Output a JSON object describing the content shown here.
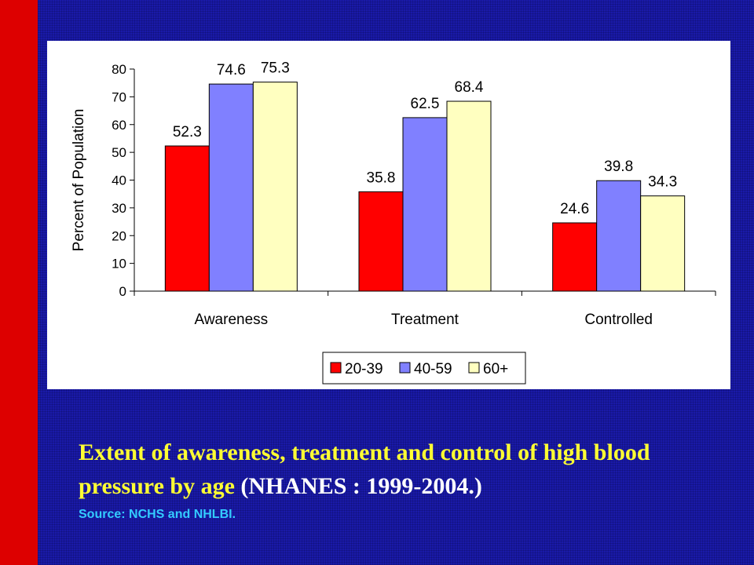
{
  "slide": {
    "colors": {
      "background": "#1a1aa8",
      "left_bar": "#dd0000",
      "caption": "#ffff33",
      "caption_tail": "#ffffff",
      "source": "#33ccff"
    },
    "caption_main": "Extent of awareness, treatment and control of high blood pressure by age",
    "caption_tail": " (NHANES : 1999-2004.)",
    "source": "Source: NCHS and NHLBI."
  },
  "chart_data": {
    "type": "bar",
    "title": "",
    "xlabel": "",
    "ylabel": "Percent of Population",
    "ylim": [
      0,
      80
    ],
    "yticks": [
      0,
      10,
      20,
      30,
      40,
      50,
      60,
      70,
      80
    ],
    "categories": [
      "Awareness",
      "Treatment",
      "Controlled"
    ],
    "series": [
      {
        "name": "20-39",
        "color": "#ff0000",
        "values": [
          52.3,
          35.8,
          24.6
        ]
      },
      {
        "name": "40-59",
        "color": "#8080ff",
        "values": [
          74.6,
          62.5,
          39.8
        ]
      },
      {
        "name": "60+",
        "color": "#ffffc0",
        "values": [
          75.3,
          68.4,
          34.3
        ]
      }
    ],
    "data_labels": [
      [
        "52.3",
        "35.8",
        "24.6"
      ],
      [
        "74.6",
        "62.5",
        "39.8"
      ],
      [
        "75.3",
        "68.4",
        "34.3"
      ]
    ],
    "grid": false,
    "legend_position": "bottom"
  }
}
